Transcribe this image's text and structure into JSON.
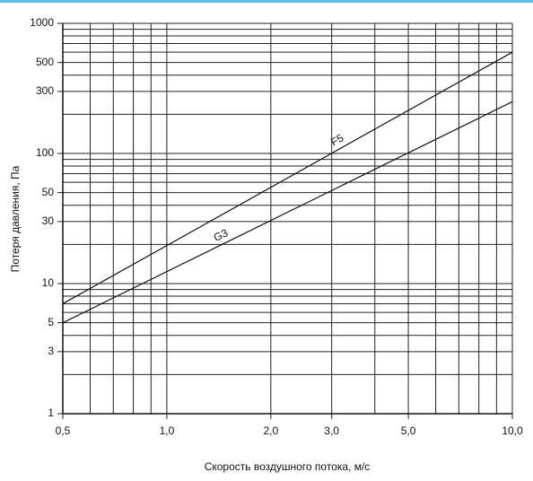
{
  "chart_data": {
    "type": "line",
    "log_x": true,
    "log_y": true,
    "grid": true,
    "x_label": "Скорость воздушного потока, м/с",
    "y_label": "Потеря давления, Па",
    "x": [
      0.5,
      10
    ],
    "series": [
      {
        "name": "F5",
        "color": "#111111",
        "values": [
          7,
          600
        ]
      },
      {
        "name": "G3",
        "color": "#111111",
        "values": [
          5,
          250
        ]
      }
    ],
    "xlim": [
      0.5,
      10
    ],
    "ylim": [
      1,
      1000
    ],
    "xticks": [
      {
        "value": 0.5,
        "label": "0,5"
      },
      {
        "value": 1,
        "label": "1,0"
      },
      {
        "value": 2,
        "label": "2,0"
      },
      {
        "value": 3,
        "label": "3,0"
      },
      {
        "value": 5,
        "label": "5,0"
      },
      {
        "value": 10,
        "label": "10,0"
      }
    ],
    "minor_xticks": [
      0.6,
      0.7,
      0.8,
      0.9,
      4,
      6,
      7,
      8,
      9
    ],
    "yticks": [
      1,
      3,
      5,
      10,
      30,
      50,
      100,
      300,
      500,
      1000
    ],
    "minor_yticks": [
      2,
      4,
      6,
      7,
      8,
      9,
      20,
      40,
      60,
      70,
      80,
      90,
      200,
      400,
      600,
      700,
      800,
      900
    ]
  }
}
